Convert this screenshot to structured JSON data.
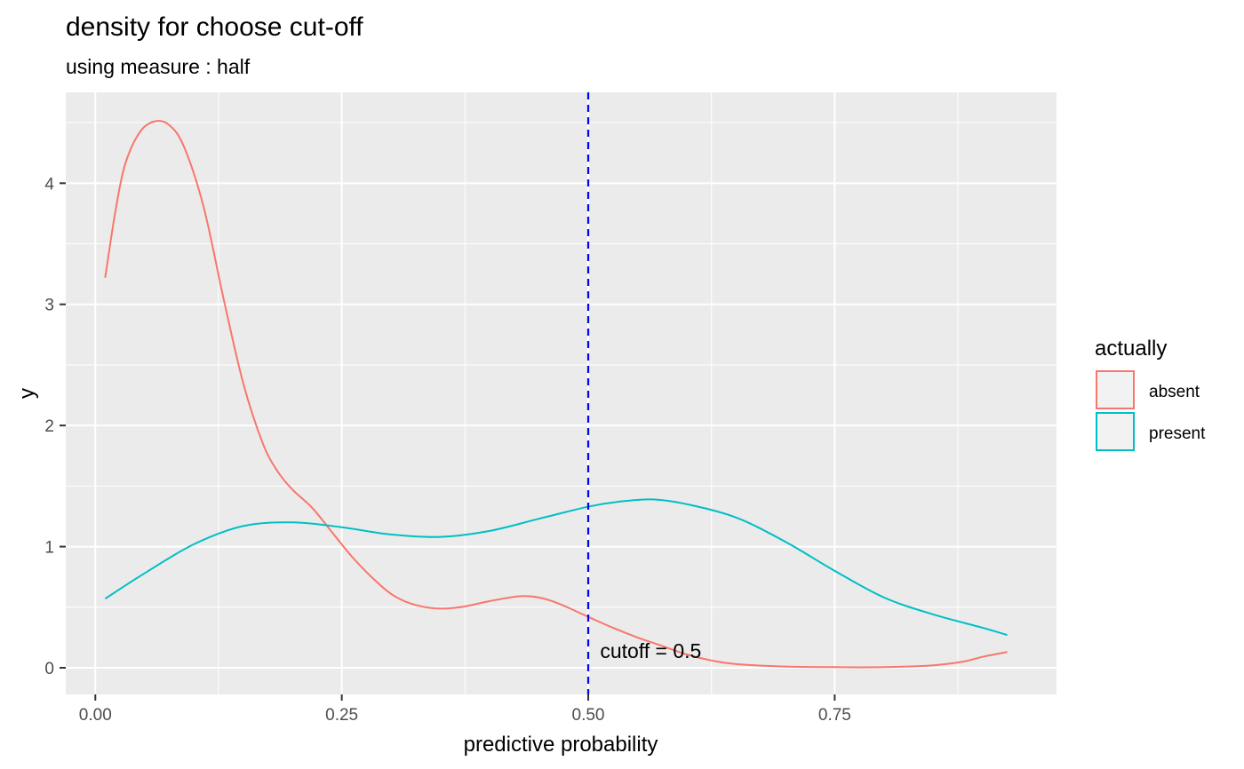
{
  "chart_data": {
    "type": "line",
    "title": "density for choose cut-off",
    "subtitle": "using measure : half",
    "xlabel": "predictive probability",
    "ylabel": "y",
    "xlim": [
      -0.03,
      0.975
    ],
    "ylim": [
      -0.22,
      4.75
    ],
    "x_ticks": [
      0.0,
      0.25,
      0.5,
      0.75
    ],
    "x_tick_labels": [
      "0.00",
      "0.25",
      "0.50",
      "0.75"
    ],
    "y_ticks": [
      0,
      1,
      2,
      3,
      4
    ],
    "y_tick_labels": [
      "0",
      "1",
      "2",
      "3",
      "4"
    ],
    "grid": true,
    "legend": {
      "title": "actually",
      "placement": "right"
    },
    "series": [
      {
        "name": "absent",
        "color": "#F8766D",
        "points": [
          [
            0.01,
            3.22
          ],
          [
            0.02,
            3.75
          ],
          [
            0.03,
            4.15
          ],
          [
            0.045,
            4.42
          ],
          [
            0.06,
            4.51
          ],
          [
            0.075,
            4.48
          ],
          [
            0.09,
            4.3
          ],
          [
            0.11,
            3.8
          ],
          [
            0.13,
            3.05
          ],
          [
            0.15,
            2.35
          ],
          [
            0.17,
            1.85
          ],
          [
            0.185,
            1.62
          ],
          [
            0.2,
            1.47
          ],
          [
            0.22,
            1.32
          ],
          [
            0.24,
            1.12
          ],
          [
            0.26,
            0.92
          ],
          [
            0.28,
            0.75
          ],
          [
            0.3,
            0.61
          ],
          [
            0.32,
            0.53
          ],
          [
            0.345,
            0.49
          ],
          [
            0.37,
            0.5
          ],
          [
            0.4,
            0.55
          ],
          [
            0.43,
            0.59
          ],
          [
            0.45,
            0.58
          ],
          [
            0.47,
            0.53
          ],
          [
            0.5,
            0.42
          ],
          [
            0.525,
            0.33
          ],
          [
            0.55,
            0.25
          ],
          [
            0.575,
            0.18
          ],
          [
            0.6,
            0.11
          ],
          [
            0.625,
            0.06
          ],
          [
            0.65,
            0.03
          ],
          [
            0.7,
            0.01
          ],
          [
            0.75,
            0.005
          ],
          [
            0.8,
            0.005
          ],
          [
            0.85,
            0.02
          ],
          [
            0.88,
            0.05
          ],
          [
            0.9,
            0.09
          ],
          [
            0.925,
            0.13
          ]
        ]
      },
      {
        "name": "present",
        "color": "#00BFC4",
        "points": [
          [
            0.01,
            0.57
          ],
          [
            0.05,
            0.78
          ],
          [
            0.1,
            1.02
          ],
          [
            0.15,
            1.17
          ],
          [
            0.2,
            1.2
          ],
          [
            0.25,
            1.16
          ],
          [
            0.3,
            1.1
          ],
          [
            0.35,
            1.08
          ],
          [
            0.4,
            1.13
          ],
          [
            0.45,
            1.23
          ],
          [
            0.5,
            1.33
          ],
          [
            0.53,
            1.37
          ],
          [
            0.565,
            1.39
          ],
          [
            0.6,
            1.35
          ],
          [
            0.65,
            1.24
          ],
          [
            0.7,
            1.04
          ],
          [
            0.75,
            0.8
          ],
          [
            0.8,
            0.58
          ],
          [
            0.85,
            0.44
          ],
          [
            0.9,
            0.33
          ],
          [
            0.925,
            0.27
          ]
        ]
      }
    ],
    "cutoff_line": {
      "x": 0.5,
      "color": "#0000FF",
      "style": "dashed"
    },
    "annotations": [
      {
        "text": "cutoff = 0.5",
        "x": 0.512,
        "y": 0.08
      }
    ]
  }
}
